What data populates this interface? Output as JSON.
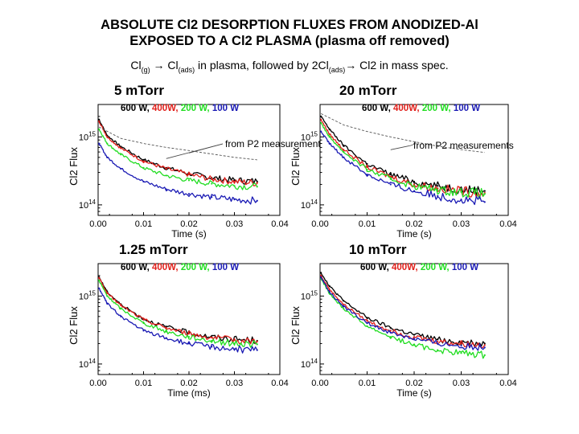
{
  "slide": {
    "title_line1": "ABSOLUTE Cl2 DESORPTION FLUXES FROM ANODIZED-Al",
    "title_line2": "EXPOSED TO A Cl2 PLASMA (plasma off removed)",
    "subtitle": {
      "a": "Cl",
      "a_sub": "(g)",
      "arrow1": "→",
      "b": " Cl",
      "b_sub": "(ads)",
      "c": " in plasma, followed by 2Cl",
      "c_sub": "(ads)",
      "arrow2": "→",
      "d": " Cl2 in mass spec."
    }
  },
  "colors": {
    "600 W": "#000000",
    "400W": "#e0201b",
    "200 W": "#22dd22",
    "100 W": "#1a1ab4",
    "P2": "#555555"
  },
  "chart_data": [
    {
      "type": "line",
      "title": "5 mTorr",
      "xlabel": "Time (s)",
      "ylabel": "Cl2 Flux",
      "xlim": [
        0,
        0.04
      ],
      "ylim": [
        70000000000000,
        3000000000000000
      ],
      "log_y": true,
      "xticks": [
        "0.00",
        "0.01",
        "0.02",
        "0.03",
        "0.04"
      ],
      "yticks": [
        "10^15",
        "10^14"
      ],
      "legend": [
        "600 W",
        "400W",
        "200 W",
        "100 W"
      ],
      "annotation": "from P2 measurements",
      "series": [
        {
          "name": "600 W",
          "x": [
            0.0002,
            0.002,
            0.005,
            0.01,
            0.015,
            0.02,
            0.025,
            0.03,
            0.035
          ],
          "y": [
            1800000000000000.0,
            1050000000000000.0,
            720000000000000.0,
            460000000000000.0,
            350000000000000.0,
            290000000000000.0,
            250000000000000.0,
            230000000000000.0,
            220000000000000.0
          ]
        },
        {
          "name": "400W",
          "x": [
            0.0002,
            0.002,
            0.005,
            0.01,
            0.015,
            0.02,
            0.025,
            0.03,
            0.035
          ],
          "y": [
            1700000000000000.0,
            1000000000000000.0,
            680000000000000.0,
            440000000000000.0,
            340000000000000.0,
            280000000000000.0,
            240000000000000.0,
            220000000000000.0,
            210000000000000.0
          ]
        },
        {
          "name": "200 W",
          "x": [
            0.0002,
            0.002,
            0.005,
            0.01,
            0.015,
            0.02,
            0.025,
            0.03,
            0.035
          ],
          "y": [
            1300000000000000.0,
            800000000000000.0,
            550000000000000.0,
            350000000000000.0,
            270000000000000.0,
            230000000000000.0,
            205000000000000.0,
            190000000000000.0,
            185000000000000.0
          ]
        },
        {
          "name": "100 W",
          "x": [
            0.0002,
            0.002,
            0.005,
            0.01,
            0.015,
            0.02,
            0.025,
            0.03,
            0.035
          ],
          "y": [
            800000000000000.0,
            500000000000000.0,
            340000000000000.0,
            220000000000000.0,
            170000000000000.0,
            145000000000000.0,
            130000000000000.0,
            120000000000000.0,
            115000000000000.0
          ]
        },
        {
          "name": "from P2 measurements",
          "x": [
            0.0002,
            0.005,
            0.01,
            0.015,
            0.02,
            0.025,
            0.03,
            0.035
          ],
          "y": [
            1400000000000000.0,
            950000000000000.0,
            800000000000000.0,
            700000000000000.0,
            630000000000000.0,
            560000000000000.0,
            500000000000000.0,
            460000000000000.0
          ]
        }
      ]
    },
    {
      "type": "line",
      "title": "20 mTorr",
      "xlabel": "Time (s)",
      "ylabel": "Cl2 Flux",
      "xlim": [
        0,
        0.04
      ],
      "ylim": [
        70000000000000,
        3000000000000000
      ],
      "log_y": true,
      "xticks": [
        "0.00",
        "0.01",
        "0.02",
        "0.03",
        "0.04"
      ],
      "yticks": [
        "10^15",
        "10^14"
      ],
      "legend": [
        "600 W",
        "400W",
        "200 W",
        "100 W"
      ],
      "annotation": "from P2 measurements",
      "series": [
        {
          "name": "600 W",
          "x": [
            0.0002,
            0.002,
            0.005,
            0.01,
            0.015,
            0.02,
            0.025,
            0.03,
            0.035
          ],
          "y": [
            2000000000000000.0,
            1300000000000000.0,
            750000000000000.0,
            400000000000000.0,
            280000000000000.0,
            220000000000000.0,
            190000000000000.0,
            170000000000000.0,
            160000000000000.0
          ]
        },
        {
          "name": "400W",
          "x": [
            0.0002,
            0.002,
            0.005,
            0.01,
            0.015,
            0.02,
            0.025,
            0.03,
            0.035
          ],
          "y": [
            1800000000000000.0,
            1100000000000000.0,
            650000000000000.0,
            360000000000000.0,
            260000000000000.0,
            200000000000000.0,
            175000000000000.0,
            160000000000000.0,
            150000000000000.0
          ]
        },
        {
          "name": "200 W",
          "x": [
            0.0002,
            0.002,
            0.005,
            0.01,
            0.015,
            0.02,
            0.025,
            0.03,
            0.035
          ],
          "y": [
            1600000000000000.0,
            1000000000000000.0,
            600000000000000.0,
            330000000000000.0,
            240000000000000.0,
            190000000000000.0,
            165000000000000.0,
            155000000000000.0,
            145000000000000.0
          ]
        },
        {
          "name": "100 W",
          "x": [
            0.0002,
            0.002,
            0.005,
            0.01,
            0.015,
            0.02,
            0.025,
            0.03,
            0.035
          ],
          "y": [
            1200000000000000.0,
            800000000000000.0,
            500000000000000.0,
            280000000000000.0,
            200000000000000.0,
            160000000000000.0,
            135000000000000.0,
            120000000000000.0,
            110000000000000.0
          ]
        },
        {
          "name": "from P2 measurements",
          "x": [
            0.0002,
            0.005,
            0.01,
            0.015,
            0.02,
            0.025,
            0.03,
            0.035
          ],
          "y": [
            2200000000000000.0,
            1500000000000000.0,
            1200000000000000.0,
            1000000000000000.0,
            850000000000000.0,
            730000000000000.0,
            650000000000000.0,
            590000000000000.0
          ]
        }
      ]
    },
    {
      "type": "line",
      "title": "1.25 mTorr",
      "xlabel": "Time (ms)",
      "ylabel": "Cl2 Flux",
      "xlim": [
        0,
        0.04
      ],
      "ylim": [
        70000000000000,
        3000000000000000
      ],
      "log_y": true,
      "xticks": [
        "0.00",
        "0.01",
        "0.02",
        "0.03",
        "0.04"
      ],
      "yticks": [
        "10^15",
        "10^14"
      ],
      "legend": [
        "600 W",
        "400W",
        "200 W",
        "100 W"
      ],
      "series": [
        {
          "name": "600 W",
          "x": [
            0.0002,
            0.002,
            0.005,
            0.01,
            0.015,
            0.02,
            0.025,
            0.03,
            0.035
          ],
          "y": [
            1900000000000000.0,
            1150000000000000.0,
            750000000000000.0,
            460000000000000.0,
            350000000000000.0,
            290000000000000.0,
            250000000000000.0,
            230000000000000.0,
            220000000000000.0
          ]
        },
        {
          "name": "400W",
          "x": [
            0.0002,
            0.002,
            0.005,
            0.01,
            0.015,
            0.02,
            0.025,
            0.03,
            0.035
          ],
          "y": [
            1850000000000000.0,
            1100000000000000.0,
            730000000000000.0,
            450000000000000.0,
            340000000000000.0,
            280000000000000.0,
            245000000000000.0,
            225000000000000.0,
            215000000000000.0
          ]
        },
        {
          "name": "200 W",
          "x": [
            0.0002,
            0.002,
            0.005,
            0.01,
            0.015,
            0.02,
            0.025,
            0.03,
            0.035
          ],
          "y": [
            1700000000000000.0,
            1000000000000000.0,
            650000000000000.0,
            400000000000000.0,
            300000000000000.0,
            250000000000000.0,
            220000000000000.0,
            200000000000000.0,
            195000000000000.0
          ]
        },
        {
          "name": "100 W",
          "x": [
            0.0002,
            0.002,
            0.005,
            0.01,
            0.015,
            0.02,
            0.025,
            0.03,
            0.035
          ],
          "y": [
            1300000000000000.0,
            780000000000000.0,
            500000000000000.0,
            310000000000000.0,
            240000000000000.0,
            200000000000000.0,
            180000000000000.0,
            165000000000000.0,
            160000000000000.0
          ]
        }
      ]
    },
    {
      "type": "line",
      "title": "10 mTorr",
      "xlabel": "Time (s)",
      "ylabel": "Cl2 Flux",
      "xlim": [
        0,
        0.04
      ],
      "ylim": [
        70000000000000,
        3000000000000000
      ],
      "log_y": true,
      "xticks": [
        "0.00",
        "0.01",
        "0.02",
        "0.03",
        "0.04"
      ],
      "yticks": [
        "10^15",
        "10^14"
      ],
      "legend": [
        "600 W",
        "400W",
        "200 W",
        "100 W"
      ],
      "series": [
        {
          "name": "600 W",
          "x": [
            0.0002,
            0.002,
            0.005,
            0.01,
            0.015,
            0.02,
            0.025,
            0.03,
            0.035
          ],
          "y": [
            2200000000000000.0,
            1400000000000000.0,
            850000000000000.0,
            480000000000000.0,
            340000000000000.0,
            270000000000000.0,
            230000000000000.0,
            210000000000000.0,
            200000000000000.0
          ]
        },
        {
          "name": "400W",
          "x": [
            0.0002,
            0.002,
            0.005,
            0.01,
            0.015,
            0.02,
            0.025,
            0.03,
            0.035
          ],
          "y": [
            2000000000000000.0,
            1250000000000000.0,
            750000000000000.0,
            430000000000000.0,
            310000000000000.0,
            250000000000000.0,
            215000000000000.0,
            200000000000000.0,
            190000000000000.0
          ]
        },
        {
          "name": "200 W",
          "x": [
            0.0002,
            0.002,
            0.005,
            0.01,
            0.015,
            0.02,
            0.025,
            0.03,
            0.035
          ],
          "y": [
            1800000000000000.0,
            1100000000000000.0,
            650000000000000.0,
            360000000000000.0,
            250000000000000.0,
            190000000000000.0,
            160000000000000.0,
            145000000000000.0,
            135000000000000.0
          ]
        },
        {
          "name": "100 W",
          "x": [
            0.0002,
            0.002,
            0.005,
            0.01,
            0.015,
            0.02,
            0.025,
            0.03,
            0.035
          ],
          "y": [
            1900000000000000.0,
            1150000000000000.0,
            700000000000000.0,
            400000000000000.0,
            290000000000000.0,
            235000000000000.0,
            200000000000000.0,
            185000000000000.0,
            175000000000000.0
          ]
        }
      ]
    }
  ]
}
